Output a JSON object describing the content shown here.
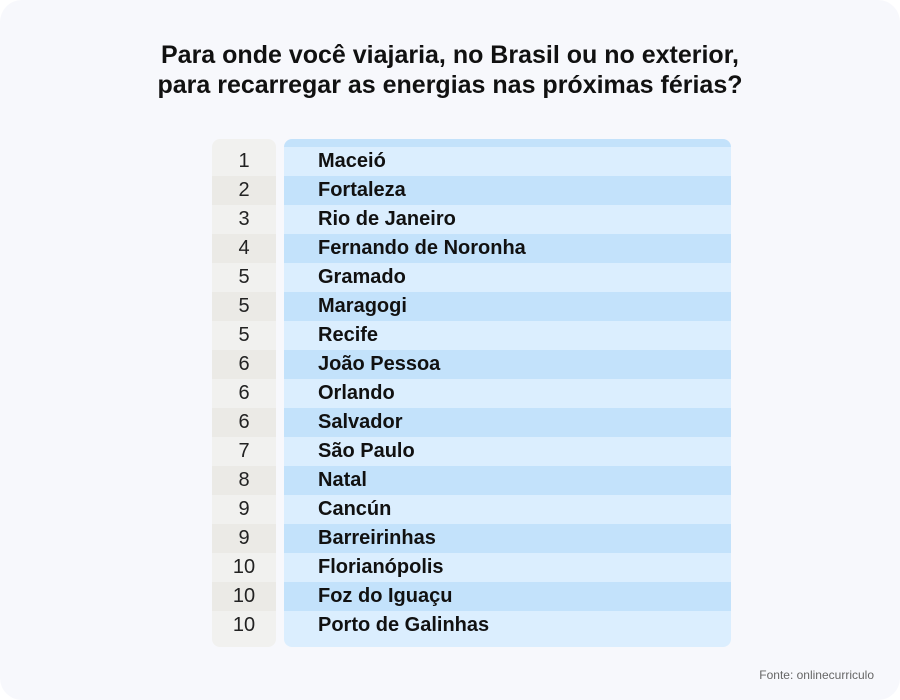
{
  "title_line1": "Para onde você viajaria, no Brasil ou no exterior,",
  "title_line2": "para recarregar as energias nas próximas férias?",
  "source": "Fonte: onlinecurriculo",
  "colors": {
    "name_band_light": "#dbeefe",
    "name_band_dark": "#c3e2fb",
    "rank_band_light": "#f1f1ef",
    "rank_band_dark": "#ebeae6",
    "background": "#f7f8fc"
  },
  "chart_data": {
    "type": "table",
    "title": "Para onde você viajaria, no Brasil ou no exterior, para recarregar as energias nas próximas férias?",
    "columns": [
      "",
      ""
    ],
    "rows": [
      {
        "rank": "1",
        "name": "Maceió"
      },
      {
        "rank": "2",
        "name": "Fortaleza"
      },
      {
        "rank": "3",
        "name": "Rio de Janeiro"
      },
      {
        "rank": "4",
        "name": "Fernando de Noronha"
      },
      {
        "rank": "5",
        "name": "Gramado"
      },
      {
        "rank": "5",
        "name": "Maragogi"
      },
      {
        "rank": "5",
        "name": "Recife"
      },
      {
        "rank": "6",
        "name": "João Pessoa"
      },
      {
        "rank": "6",
        "name": "Orlando"
      },
      {
        "rank": "6",
        "name": "Salvador"
      },
      {
        "rank": "7",
        "name": "São Paulo"
      },
      {
        "rank": "8",
        "name": "Natal"
      },
      {
        "rank": "9",
        "name": "Cancún"
      },
      {
        "rank": "9",
        "name": "Barreirinhas"
      },
      {
        "rank": "10",
        "name": "Florianópolis"
      },
      {
        "rank": "10",
        "name": "Foz do Iguaçu"
      },
      {
        "rank": "10",
        "name": "Porto de Galinhas"
      }
    ]
  }
}
